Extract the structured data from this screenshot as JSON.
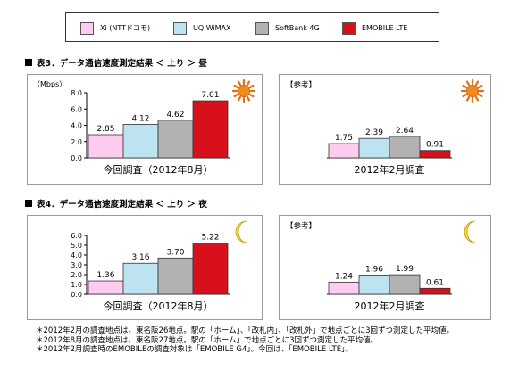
{
  "legend": {
    "items": [
      {
        "label": "Xi (NTTドコモ)",
        "color": "#ffccf0"
      },
      {
        "label": "UQ WiMAX",
        "color": "#bde3f0"
      },
      {
        "label": "SoftBank 4G",
        "color": "#b2b2b2"
      },
      {
        "label": "EMOBILE LTE",
        "color": "#d7101b"
      }
    ]
  },
  "sections": [
    {
      "title": "表3．データ通信速度測定結果 ＜ 上り ＞ 昼"
    },
    {
      "title": "表4．データ通信速度測定結果 ＜ 上り ＞ 夜"
    }
  ],
  "chart_data": [
    {
      "type": "bar",
      "section": 0,
      "title": "",
      "ylabel": "（Mbps）",
      "xlabel": "今回調査（2012年8月）",
      "ylim": [
        0,
        8
      ],
      "yticks": [
        "0.0",
        "2.0",
        "4.0",
        "6.0",
        "8.0"
      ],
      "show_axis": true,
      "header": "",
      "icon": "sun-icon",
      "series": [
        {
          "name": "Xi (NTTドコモ)",
          "values": [
            2.85
          ],
          "labels": [
            "2.85"
          ]
        },
        {
          "name": "UQ WiMAX",
          "values": [
            4.12
          ],
          "labels": [
            "4.12"
          ]
        },
        {
          "name": "SoftBank 4G",
          "values": [
            4.62
          ],
          "labels": [
            "4.62"
          ]
        },
        {
          "name": "EMOBILE LTE",
          "values": [
            7.01
          ],
          "labels": [
            "7.01"
          ]
        }
      ]
    },
    {
      "type": "bar",
      "section": 0,
      "title": "",
      "ylabel": "",
      "xlabel": "2012年2月調査",
      "ylim": [
        0,
        8
      ],
      "yticks": [],
      "show_axis": false,
      "header": "【参考】",
      "icon": "sun-icon",
      "series": [
        {
          "name": "Xi (NTTドコモ)",
          "values": [
            1.75
          ],
          "labels": [
            "1.75"
          ]
        },
        {
          "name": "UQ WiMAX",
          "values": [
            2.39
          ],
          "labels": [
            "2.39"
          ]
        },
        {
          "name": "SoftBank 4G",
          "values": [
            2.64
          ],
          "labels": [
            "2.64"
          ]
        },
        {
          "name": "EMOBILE LTE",
          "values": [
            0.91
          ],
          "labels": [
            "0.91"
          ]
        }
      ]
    },
    {
      "type": "bar",
      "section": 1,
      "title": "",
      "ylabel": "",
      "xlabel": "今回調査（2012年8月）",
      "ylim": [
        0,
        6
      ],
      "yticks": [
        "0.0",
        "1.0",
        "2.0",
        "3.0",
        "4.0",
        "5.0",
        "6.0"
      ],
      "show_axis": true,
      "header": "",
      "icon": "moon-icon",
      "series": [
        {
          "name": "Xi (NTTドコモ)",
          "values": [
            1.36
          ],
          "labels": [
            "1.36"
          ]
        },
        {
          "name": "UQ WiMAX",
          "values": [
            3.16
          ],
          "labels": [
            "3.16"
          ]
        },
        {
          "name": "SoftBank 4G",
          "values": [
            3.7
          ],
          "labels": [
            "3.70"
          ]
        },
        {
          "name": "EMOBILE LTE",
          "values": [
            5.22
          ],
          "labels": [
            "5.22"
          ]
        }
      ]
    },
    {
      "type": "bar",
      "section": 1,
      "title": "",
      "ylabel": "",
      "xlabel": "2012年2月調査",
      "ylim": [
        0,
        6
      ],
      "yticks": [],
      "show_axis": false,
      "header": "【参考】",
      "icon": "moon-icon",
      "series": [
        {
          "name": "Xi (NTTドコモ)",
          "values": [
            1.24
          ],
          "labels": [
            "1.24"
          ]
        },
        {
          "name": "UQ WiMAX",
          "values": [
            1.96
          ],
          "labels": [
            "1.96"
          ]
        },
        {
          "name": "SoftBank 4G",
          "values": [
            1.99
          ],
          "labels": [
            "1.99"
          ]
        },
        {
          "name": "EMOBILE LTE",
          "values": [
            0.61
          ],
          "labels": [
            "0.61"
          ]
        }
      ]
    }
  ],
  "footnotes": [
    "＊2012年2月の調査地点は、東名阪26地点。駅の「ホーム」、「改札内」、「改札外」で地点ごとに3回ずつ測定した平均値。",
    "＊2012年8月の調査地点は、東名阪27地点。駅の「ホーム」で地点ごとに3回ずつ測定した平均値。",
    "＊2012年2月調査時のEMOBILEの調査対象は「EMOBILE G4」。今回は、「EMOBILE LTE」。"
  ]
}
